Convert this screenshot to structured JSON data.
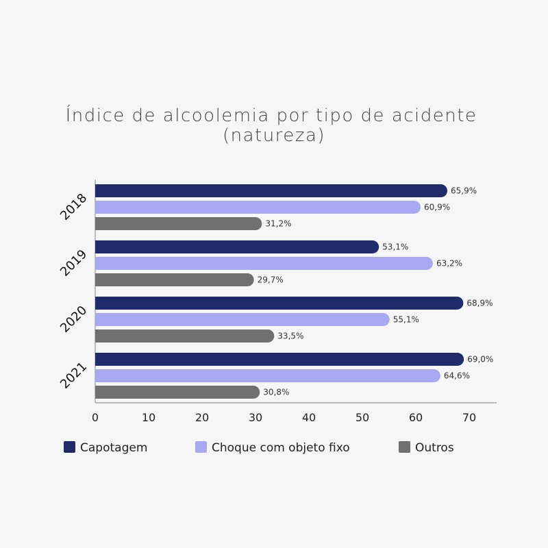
{
  "chart_data": {
    "type": "bar",
    "orientation": "horizontal",
    "title_lines": [
      "Índice de alcoolemia por tipo de acidente",
      "(natureza)"
    ],
    "categories": [
      "2018",
      "2019",
      "2020",
      "2021"
    ],
    "series": [
      {
        "name": "Capotagem",
        "color": "#1f2b6b",
        "values": [
          65.9,
          53.1,
          68.9,
          69.0
        ],
        "labels": [
          "65,9%",
          "53,1%",
          "68,9%",
          "69,0%"
        ]
      },
      {
        "name": "Choque com objeto fixo",
        "color": "#a9a9f2",
        "values": [
          60.9,
          63.2,
          55.1,
          64.6
        ],
        "labels": [
          "60,9%",
          "63,2%",
          "55,1%",
          "64,6%"
        ]
      },
      {
        "name": "Outros",
        "color": "#707070",
        "values": [
          31.2,
          29.7,
          33.5,
          30.8
        ],
        "labels": [
          "31,2%",
          "29,7%",
          "33,5%",
          "30,8%"
        ]
      }
    ],
    "xlim": [
      0,
      70
    ],
    "xticks": [
      "0",
      "10",
      "20",
      "30",
      "40",
      "50",
      "60",
      "70"
    ],
    "grid": false,
    "legend_position": "bottom"
  }
}
